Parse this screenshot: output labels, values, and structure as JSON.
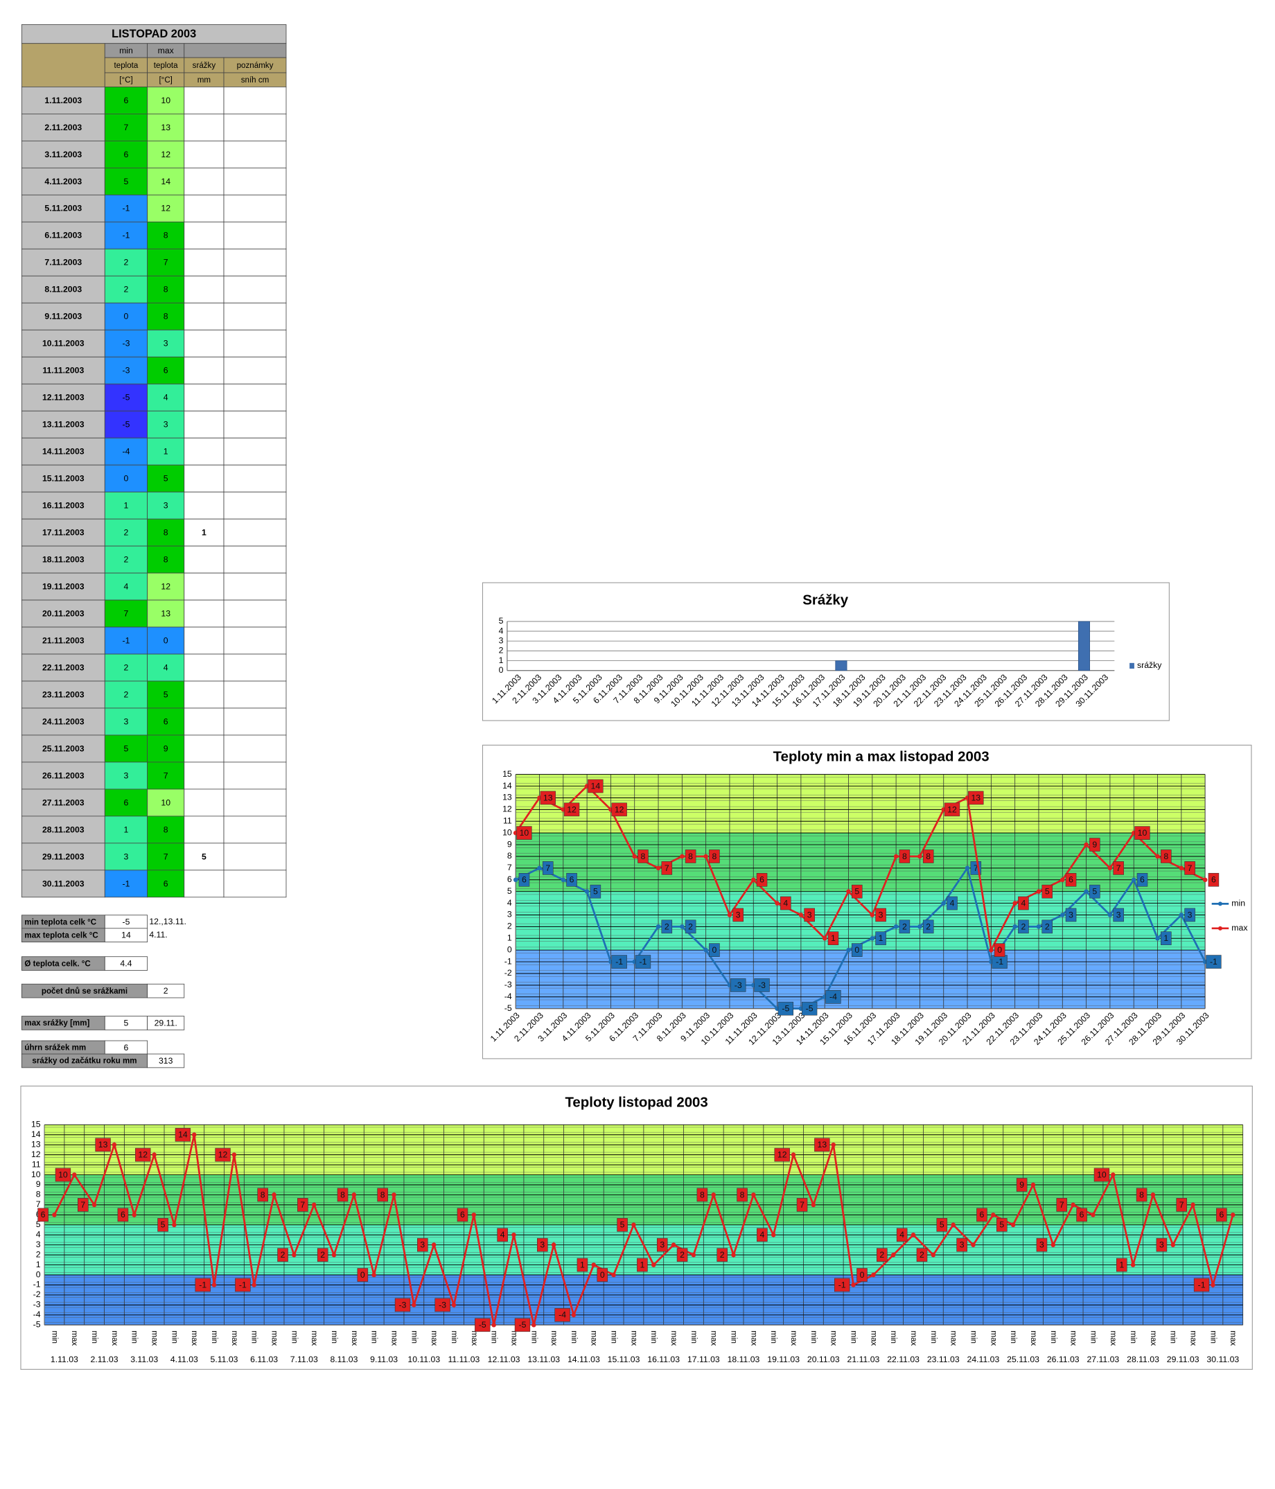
{
  "table": {
    "title": "LISTOPAD 2003",
    "header": {
      "min": "min",
      "max": "max",
      "teplota_min": "teplota",
      "teplota_max": "teplota",
      "srazky": "srážky",
      "poznamky": "poznámky",
      "unit_min": "[°C]",
      "unit_max": "[°C]",
      "unit_srazky": "mm",
      "unit_poznamky": "sníh cm"
    },
    "rows": [
      {
        "date": "1.11.2003",
        "min": 6,
        "max": 10
      },
      {
        "date": "2.11.2003",
        "min": 7,
        "max": 13
      },
      {
        "date": "3.11.2003",
        "min": 6,
        "max": 12
      },
      {
        "date": "4.11.2003",
        "min": 5,
        "max": 14
      },
      {
        "date": "5.11.2003",
        "min": -1,
        "max": 12
      },
      {
        "date": "6.11.2003",
        "min": -1,
        "max": 8
      },
      {
        "date": "7.11.2003",
        "min": 2,
        "max": 7
      },
      {
        "date": "8.11.2003",
        "min": 2,
        "max": 8
      },
      {
        "date": "9.11.2003",
        "min": 0,
        "max": 8
      },
      {
        "date": "10.11.2003",
        "min": -3,
        "max": 3
      },
      {
        "date": "11.11.2003",
        "min": -3,
        "max": 6
      },
      {
        "date": "12.11.2003",
        "min": -5,
        "max": 4
      },
      {
        "date": "13.11.2003",
        "min": -5,
        "max": 3
      },
      {
        "date": "14.11.2003",
        "min": -4,
        "max": 1
      },
      {
        "date": "15.11.2003",
        "min": 0,
        "max": 5
      },
      {
        "date": "16.11.2003",
        "min": 1,
        "max": 3
      },
      {
        "date": "17.11.2003",
        "min": 2,
        "max": 8,
        "srazky": 1
      },
      {
        "date": "18.11.2003",
        "min": 2,
        "max": 8
      },
      {
        "date": "19.11.2003",
        "min": 4,
        "max": 12
      },
      {
        "date": "20.11.2003",
        "min": 7,
        "max": 13
      },
      {
        "date": "21.11.2003",
        "min": -1,
        "max": 0
      },
      {
        "date": "22.11.2003",
        "min": 2,
        "max": 4
      },
      {
        "date": "23.11.2003",
        "min": 2,
        "max": 5
      },
      {
        "date": "24.11.2003",
        "min": 3,
        "max": 6
      },
      {
        "date": "25.11.2003",
        "min": 5,
        "max": 9
      },
      {
        "date": "26.11.2003",
        "min": 3,
        "max": 7
      },
      {
        "date": "27.11.2003",
        "min": 6,
        "max": 10
      },
      {
        "date": "28.11.2003",
        "min": 1,
        "max": 8
      },
      {
        "date": "29.11.2003",
        "min": 3,
        "max": 7,
        "srazky": 5
      },
      {
        "date": "30.11.2003",
        "min": -1,
        "max": 6
      }
    ],
    "min_colors": [
      "#00cc00",
      "#00cc00",
      "#00cc00",
      "#00cc00",
      "#1e90ff",
      "#1e90ff",
      "#33ee99",
      "#33ee99",
      "#1e90ff",
      "#1e90ff",
      "#1e90ff",
      "#3333ff",
      "#3333ff",
      "#1e90ff",
      "#1e90ff",
      "#33ee99",
      "#33ee99",
      "#33ee99",
      "#33ee99",
      "#00cc00",
      "#1e90ff",
      "#33ee99",
      "#33ee99",
      "#33ee99",
      "#00cc00",
      "#33ee99",
      "#00cc00",
      "#33ee99",
      "#33ee99",
      "#1e90ff"
    ],
    "max_colors": [
      "#99ff66",
      "#99ff66",
      "#99ff66",
      "#99ff66",
      "#99ff66",
      "#00cc00",
      "#00cc00",
      "#00cc00",
      "#00cc00",
      "#33ee99",
      "#00cc00",
      "#33ee99",
      "#33ee99",
      "#33ee99",
      "#00cc00",
      "#33ee99",
      "#00cc00",
      "#00cc00",
      "#99ff66",
      "#99ff66",
      "#1e90ff",
      "#33ee99",
      "#00cc00",
      "#00cc00",
      "#00cc00",
      "#00cc00",
      "#99ff66",
      "#00cc00",
      "#00cc00",
      "#00cc00"
    ]
  },
  "summary": [
    {
      "label": "min teplota celk °C",
      "value": -5,
      "note": "12.,13.11."
    },
    {
      "label": "max teplota celk °C",
      "value": 14,
      "note": "4.11."
    },
    {
      "label": "Ø teplota celk. °C",
      "value": 4.4
    },
    {
      "label": "počet dnů se srážkami",
      "value": 2
    },
    {
      "label": "max srážky [mm]",
      "value": 5,
      "note": "29.11."
    },
    {
      "label": "úhrn srážek  mm",
      "value": 6
    },
    {
      "label": "srážky od začátku roku mm",
      "value": 313
    }
  ],
  "chart_data": [
    {
      "type": "bar",
      "title": "Srážky",
      "categories": [
        "1.11.2003",
        "2.11.2003",
        "3.11.2003",
        "4.11.2003",
        "5.11.2003",
        "6.11.2003",
        "7.11.2003",
        "8.11.2003",
        "9.11.2003",
        "10.11.2003",
        "11.11.2003",
        "12.11.2003",
        "13.11.2003",
        "14.11.2003",
        "15.11.2003",
        "16.11.2003",
        "17.11.2003",
        "18.11.2003",
        "19.11.2003",
        "20.11.2003",
        "21.11.2003",
        "22.11.2003",
        "23.11.2003",
        "24.11.2003",
        "25.11.2003",
        "26.11.2003",
        "27.11.2003",
        "28.11.2003",
        "29.11.2003",
        "30.11.2003"
      ],
      "series": [
        {
          "name": "srážky",
          "color": "#3f6fb0",
          "values": [
            null,
            null,
            null,
            null,
            null,
            null,
            null,
            null,
            null,
            null,
            null,
            null,
            null,
            null,
            null,
            null,
            1,
            null,
            null,
            null,
            null,
            null,
            null,
            null,
            null,
            null,
            null,
            null,
            5,
            null
          ]
        }
      ],
      "ylim": [
        0,
        5
      ],
      "yticks": [
        0,
        1,
        2,
        3,
        4,
        5
      ],
      "grid": true,
      "legend": "right"
    },
    {
      "type": "line",
      "title": "Teploty min a max listopad 2003",
      "categories": [
        "1.11.2003",
        "2.11.2003",
        "3.11.2003",
        "4.11.2003",
        "5.11.2003",
        "6.11.2003",
        "7.11.2003",
        "8.11.2003",
        "9.11.2003",
        "10.11.2003",
        "11.11.2003",
        "12.11.2003",
        "13.11.2003",
        "14.11.2003",
        "15.11.2003",
        "16.11.2003",
        "17.11.2003",
        "18.11.2003",
        "19.11.2003",
        "20.11.2003",
        "21.11.2003",
        "22.11.2003",
        "23.11.2003",
        "24.11.2003",
        "25.11.2003",
        "26.11.2003",
        "27.11.2003",
        "28.11.2003",
        "29.11.2003",
        "30.11.2003"
      ],
      "series": [
        {
          "name": "min",
          "color": "#1f6fb4",
          "values": [
            6,
            7,
            6,
            5,
            -1,
            -1,
            2,
            2,
            0,
            -3,
            -3,
            -5,
            -5,
            -4,
            0,
            1,
            2,
            2,
            4,
            7,
            -1,
            2,
            2,
            3,
            5,
            3,
            6,
            1,
            3,
            -1
          ]
        },
        {
          "name": "max",
          "color": "#e02020",
          "values": [
            10,
            13,
            12,
            14,
            12,
            8,
            7,
            8,
            8,
            3,
            6,
            4,
            3,
            1,
            5,
            3,
            8,
            8,
            12,
            13,
            0,
            4,
            5,
            6,
            9,
            7,
            10,
            8,
            7,
            6
          ]
        }
      ],
      "ylim": [
        -5,
        15
      ],
      "yticks": [
        -5,
        -4,
        -3,
        -2,
        -1,
        0,
        1,
        2,
        3,
        4,
        5,
        6,
        7,
        8,
        9,
        10,
        11,
        12,
        13,
        14,
        15
      ],
      "grid": true,
      "legend": "right",
      "bands": [
        {
          "from": -5,
          "to": 0,
          "color": "#66aaff"
        },
        {
          "from": 0,
          "to": 5,
          "color": "#55eebb"
        },
        {
          "from": 5,
          "to": 10,
          "color": "#55dd77"
        },
        {
          "from": 10,
          "to": 15,
          "color": "#ccff66"
        }
      ]
    },
    {
      "type": "line",
      "title": "Teploty listopad 2003",
      "categories": [
        "min",
        "max",
        "min",
        "max",
        "min",
        "max",
        "min",
        "max",
        "min",
        "max",
        "min",
        "max",
        "min",
        "max",
        "min",
        "max",
        "min",
        "max",
        "min",
        "max",
        "min",
        "max",
        "min",
        "max",
        "min",
        "max",
        "min",
        "max",
        "min",
        "max",
        "min",
        "max",
        "min",
        "max",
        "min",
        "max",
        "min",
        "max",
        "min",
        "max",
        "min",
        "max",
        "min",
        "max",
        "min",
        "max",
        "min",
        "max",
        "min",
        "max",
        "min",
        "max",
        "min",
        "max",
        "min",
        "max",
        "min",
        "max",
        "min",
        "max"
      ],
      "groups": [
        "1.11.03",
        "2.11.03",
        "3.11.03",
        "4.11.03",
        "5.11.03",
        "6.11.03",
        "7.11.03",
        "8.11.03",
        "9.11.03",
        "10.11.03",
        "11.11.03",
        "12.11.03",
        "13.11.03",
        "14.11.03",
        "15.11.03",
        "16.11.03",
        "17.11.03",
        "18.11.03",
        "19.11.03",
        "20.11.03",
        "21.11.03",
        "22.11.03",
        "23.11.03",
        "24.11.03",
        "25.11.03",
        "26.11.03",
        "27.11.03",
        "28.11.03",
        "29.11.03",
        "30.11.03"
      ],
      "series": [
        {
          "color": "#e02020",
          "values": [
            6,
            10,
            7,
            13,
            6,
            12,
            5,
            14,
            -1,
            12,
            -1,
            8,
            2,
            7,
            2,
            8,
            0,
            8,
            -3,
            3,
            -3,
            6,
            -5,
            4,
            -5,
            3,
            -4,
            1,
            0,
            5,
            1,
            3,
            2,
            8,
            2,
            8,
            4,
            12,
            7,
            13,
            -1,
            0,
            2,
            4,
            2,
            5,
            3,
            6,
            5,
            9,
            3,
            7,
            6,
            10,
            1,
            8,
            3,
            7,
            -1,
            6
          ]
        }
      ],
      "ylim": [
        -5,
        15
      ],
      "yticks": [
        -5,
        -4,
        -3,
        -2,
        -1,
        0,
        1,
        2,
        3,
        4,
        5,
        6,
        7,
        8,
        9,
        10,
        11,
        12,
        13,
        14,
        15
      ],
      "grid": true,
      "bands": [
        {
          "from": -5,
          "to": 0,
          "color": "#4a8ff0"
        },
        {
          "from": 0,
          "to": 5,
          "color": "#55eebb"
        },
        {
          "from": 5,
          "to": 10,
          "color": "#55dd77"
        },
        {
          "from": 10,
          "to": 15,
          "color": "#ccff66"
        }
      ]
    }
  ]
}
